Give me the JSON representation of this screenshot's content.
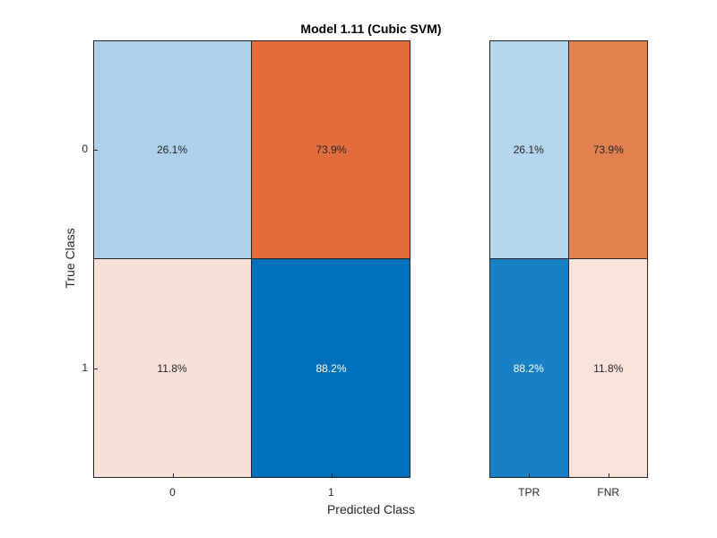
{
  "title": "Model 1.11 (Cubic SVM)",
  "chart_data": [
    {
      "type": "heatmap",
      "name": "confusion-matrix",
      "xlabel": "Predicted Class",
      "ylabel": "True Class",
      "x_categories": [
        "0",
        "1"
      ],
      "y_categories": [
        "0",
        "1"
      ],
      "cells": [
        [
          {
            "label": "26.1%",
            "value": 26.1,
            "color": "#aed0ea",
            "text_color": "#262626"
          },
          {
            "label": "73.9%",
            "value": 73.9,
            "color": "#e06d3b",
            "text_color": "#262626"
          }
        ],
        [
          {
            "label": "11.8%",
            "value": 11.8,
            "color": "#f7e1d8",
            "text_color": "#262626"
          },
          {
            "label": "88.2%",
            "value": 88.2,
            "color": "#0070bd",
            "text_color": "#ffffff"
          }
        ]
      ]
    },
    {
      "type": "heatmap",
      "name": "tpr-fnr-summary",
      "x_categories": [
        "TPR",
        "FNR"
      ],
      "y_categories": [
        "0",
        "1"
      ],
      "cells": [
        [
          {
            "label": "26.1%",
            "value": 26.1,
            "color": "#b4d5ec",
            "text_color": "#262626"
          },
          {
            "label": "73.9%",
            "value": 73.9,
            "color": "#e28050",
            "text_color": "#262626"
          }
        ],
        [
          {
            "label": "88.2%",
            "value": 88.2,
            "color": "#1a80c5",
            "text_color": "#ffffff"
          },
          {
            "label": "11.8%",
            "value": 11.8,
            "color": "#f8e3da",
            "text_color": "#262626"
          }
        ]
      ]
    }
  ]
}
